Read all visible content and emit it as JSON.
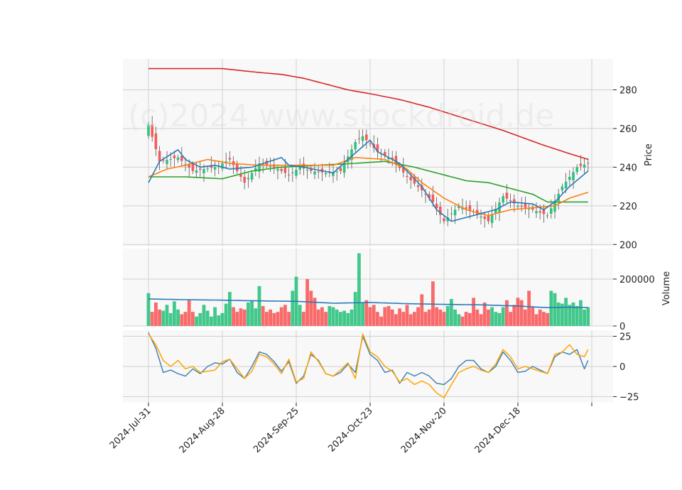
{
  "watermark": "(c)2024 www.stockdroid.de",
  "colors": {
    "up": "#2ec27e",
    "down": "#f85a5a",
    "ma_fast": "#2a7ab8",
    "ma_mid": "#ff7f0e",
    "ma_slow": "#2ca02c",
    "ma_long": "#d62728",
    "osc_a": "#4682b4",
    "osc_b": "#ffa500",
    "panel_bg": "#f8f8f8",
    "grid": "#d0d0d0"
  },
  "chart_data": {
    "type": "candlestick",
    "x_tick_labels": [
      "2024-Jul-31",
      "2024-Aug-28",
      "2024-Sep-25",
      "2024-Oct-23",
      "2024-Nov-20",
      "2024-Dec-18"
    ],
    "x_tick_index": [
      0,
      20,
      40,
      60,
      80,
      100
    ],
    "n_bars": 120,
    "price_panel": {
      "ylabel": "Price",
      "yticks": [
        200,
        220,
        240,
        260,
        280
      ],
      "ylim": [
        199,
        296
      ],
      "close_anchors": [
        [
          0,
          262
        ],
        [
          3,
          243
        ],
        [
          8,
          245
        ],
        [
          12,
          238
        ],
        [
          18,
          240
        ],
        [
          22,
          244
        ],
        [
          26,
          232
        ],
        [
          30,
          242
        ],
        [
          34,
          240
        ],
        [
          38,
          236
        ],
        [
          41,
          240
        ],
        [
          44,
          238
        ],
        [
          48,
          237
        ],
        [
          52,
          238
        ],
        [
          56,
          253
        ],
        [
          58,
          256
        ],
        [
          62,
          248
        ],
        [
          66,
          244
        ],
        [
          70,
          235
        ],
        [
          74,
          228
        ],
        [
          77,
          222
        ],
        [
          80,
          212
        ],
        [
          84,
          220
        ],
        [
          88,
          217
        ],
        [
          92,
          212
        ],
        [
          96,
          225
        ],
        [
          100,
          220
        ],
        [
          104,
          218
        ],
        [
          108,
          215
        ],
        [
          112,
          230
        ],
        [
          116,
          240
        ],
        [
          119,
          242
        ]
      ],
      "ma_fast_anchors": [
        [
          0,
          232
        ],
        [
          3,
          243
        ],
        [
          8,
          249
        ],
        [
          10,
          244
        ],
        [
          14,
          240
        ],
        [
          18,
          241
        ],
        [
          22,
          239
        ],
        [
          28,
          240
        ],
        [
          36,
          245
        ],
        [
          38,
          241
        ],
        [
          42,
          240
        ],
        [
          50,
          237
        ],
        [
          54,
          244
        ],
        [
          60,
          254
        ],
        [
          62,
          248
        ],
        [
          68,
          242
        ],
        [
          74,
          230
        ],
        [
          78,
          218
        ],
        [
          82,
          212
        ],
        [
          86,
          214
        ],
        [
          90,
          216
        ],
        [
          94,
          218
        ],
        [
          98,
          222
        ],
        [
          104,
          221
        ],
        [
          107,
          218
        ],
        [
          110,
          222
        ],
        [
          114,
          230
        ],
        [
          119,
          238
        ]
      ],
      "ma_mid_anchors": [
        [
          0,
          235
        ],
        [
          5,
          239
        ],
        [
          10,
          241
        ],
        [
          16,
          244
        ],
        [
          22,
          242
        ],
        [
          30,
          241
        ],
        [
          40,
          241
        ],
        [
          50,
          241
        ],
        [
          56,
          245
        ],
        [
          64,
          244
        ],
        [
          70,
          239
        ],
        [
          74,
          232
        ],
        [
          80,
          224
        ],
        [
          86,
          218
        ],
        [
          92,
          215
        ],
        [
          98,
          218
        ],
        [
          104,
          219
        ],
        [
          110,
          220
        ],
        [
          114,
          224
        ],
        [
          119,
          227
        ]
      ],
      "ma_slow_anchors": [
        [
          0,
          235
        ],
        [
          10,
          235
        ],
        [
          20,
          234
        ],
        [
          28,
          238
        ],
        [
          36,
          240
        ],
        [
          46,
          241
        ],
        [
          56,
          242
        ],
        [
          64,
          243
        ],
        [
          72,
          240
        ],
        [
          80,
          236
        ],
        [
          86,
          233
        ],
        [
          92,
          232
        ],
        [
          98,
          229
        ],
        [
          104,
          226
        ],
        [
          108,
          222
        ],
        [
          112,
          222
        ],
        [
          119,
          222
        ]
      ],
      "ma_long_anchors": [
        [
          0,
          291
        ],
        [
          10,
          291
        ],
        [
          20,
          291
        ],
        [
          30,
          289
        ],
        [
          36,
          288
        ],
        [
          42,
          286
        ],
        [
          50,
          282
        ],
        [
          54,
          280
        ],
        [
          60,
          278
        ],
        [
          68,
          275
        ],
        [
          76,
          271
        ],
        [
          86,
          265
        ],
        [
          96,
          259
        ],
        [
          106,
          252
        ],
        [
          114,
          247
        ],
        [
          119,
          244
        ]
      ]
    },
    "volume_panel": {
      "ylabel": "Volume",
      "yticks": [
        0,
        200000
      ],
      "ytick_labels": [
        "0",
        "200000"
      ],
      "ylim": [
        0,
        330000
      ],
      "levels": [
        140000,
        60000,
        100000,
        70000,
        65000,
        90000,
        55000,
        105000,
        70000,
        50000,
        60000,
        110000,
        60000,
        40000,
        55000,
        90000,
        65000,
        40000,
        80000,
        45000,
        55000,
        95000,
        145000,
        80000,
        60000,
        75000,
        70000,
        100000,
        110000,
        75000,
        170000,
        85000,
        60000,
        70000,
        55000,
        60000,
        80000,
        90000,
        60000,
        150000,
        210000,
        90000,
        60000,
        200000,
        150000,
        120000,
        70000,
        80000,
        60000,
        85000,
        80000,
        70000,
        60000,
        65000,
        55000,
        70000,
        145000,
        310000,
        100000,
        110000,
        80000,
        90000,
        60000,
        40000,
        80000,
        85000,
        70000,
        50000,
        75000,
        60000,
        90000,
        50000,
        60000,
        80000,
        135000,
        60000,
        70000,
        190000,
        80000,
        70000,
        60000,
        85000,
        115000,
        70000,
        50000,
        40000,
        60000,
        55000,
        120000,
        70000,
        50000,
        100000,
        70000,
        80000,
        60000,
        55000,
        80000,
        110000,
        60000,
        90000,
        120000,
        110000,
        70000,
        150000,
        80000,
        50000,
        70000,
        60000,
        55000,
        150000,
        140000,
        100000,
        95000,
        120000,
        90000,
        100000,
        85000,
        110000,
        70000,
        80000
      ],
      "ma_anchors": [
        [
          0,
          115000
        ],
        [
          10,
          112000
        ],
        [
          20,
          110000
        ],
        [
          30,
          107000
        ],
        [
          40,
          105000
        ],
        [
          50,
          97000
        ],
        [
          60,
          100000
        ],
        [
          70,
          95000
        ],
        [
          80,
          92000
        ],
        [
          90,
          90000
        ],
        [
          100,
          85000
        ],
        [
          108,
          78000
        ],
        [
          114,
          80000
        ],
        [
          119,
          78000
        ]
      ]
    },
    "osc_panel": {
      "yticks": [
        -25,
        0,
        25
      ],
      "ytick_labels": [
        "−25",
        "0",
        "25"
      ],
      "ylim": [
        -30,
        30
      ],
      "line_a_anchors": [
        [
          0,
          28
        ],
        [
          2,
          15
        ],
        [
          4,
          -5
        ],
        [
          6,
          -3
        ],
        [
          8,
          -6
        ],
        [
          10,
          -8
        ],
        [
          12,
          -2
        ],
        [
          14,
          -6
        ],
        [
          16,
          0
        ],
        [
          18,
          3
        ],
        [
          20,
          2
        ],
        [
          22,
          6
        ],
        [
          24,
          -5
        ],
        [
          26,
          -10
        ],
        [
          28,
          0
        ],
        [
          30,
          12
        ],
        [
          32,
          10
        ],
        [
          34,
          4
        ],
        [
          36,
          -4
        ],
        [
          38,
          4
        ],
        [
          40,
          -14
        ],
        [
          42,
          -8
        ],
        [
          44,
          10
        ],
        [
          46,
          5
        ],
        [
          48,
          -6
        ],
        [
          50,
          -8
        ],
        [
          52,
          -5
        ],
        [
          54,
          2
        ],
        [
          56,
          -5
        ],
        [
          58,
          25
        ],
        [
          60,
          10
        ],
        [
          62,
          5
        ],
        [
          64,
          -5
        ],
        [
          66,
          -3
        ],
        [
          68,
          -14
        ],
        [
          70,
          -5
        ],
        [
          72,
          -8
        ],
        [
          74,
          -5
        ],
        [
          76,
          -8
        ],
        [
          78,
          -14
        ],
        [
          80,
          -15
        ],
        [
          82,
          -10
        ],
        [
          84,
          0
        ],
        [
          86,
          5
        ],
        [
          88,
          5
        ],
        [
          90,
          -2
        ],
        [
          92,
          -5
        ],
        [
          94,
          0
        ],
        [
          96,
          12
        ],
        [
          98,
          5
        ],
        [
          100,
          -5
        ],
        [
          102,
          -4
        ],
        [
          104,
          0
        ],
        [
          106,
          -3
        ],
        [
          108,
          -6
        ],
        [
          110,
          8
        ],
        [
          112,
          12
        ],
        [
          114,
          10
        ],
        [
          116,
          14
        ],
        [
          118,
          -2
        ],
        [
          119,
          5
        ]
      ],
      "line_b_anchors": [
        [
          0,
          27
        ],
        [
          2,
          18
        ],
        [
          4,
          5
        ],
        [
          6,
          0
        ],
        [
          8,
          5
        ],
        [
          10,
          -2
        ],
        [
          12,
          0
        ],
        [
          14,
          -5
        ],
        [
          16,
          -4
        ],
        [
          18,
          -3
        ],
        [
          20,
          4
        ],
        [
          22,
          6
        ],
        [
          24,
          -2
        ],
        [
          26,
          -10
        ],
        [
          28,
          -4
        ],
        [
          30,
          10
        ],
        [
          32,
          8
        ],
        [
          34,
          2
        ],
        [
          36,
          -6
        ],
        [
          38,
          6
        ],
        [
          40,
          -13
        ],
        [
          42,
          -10
        ],
        [
          44,
          12
        ],
        [
          46,
          4
        ],
        [
          48,
          -6
        ],
        [
          50,
          -8
        ],
        [
          52,
          -3
        ],
        [
          54,
          3
        ],
        [
          56,
          -10
        ],
        [
          58,
          27
        ],
        [
          60,
          12
        ],
        [
          62,
          8
        ],
        [
          64,
          0
        ],
        [
          66,
          -4
        ],
        [
          68,
          -13
        ],
        [
          70,
          -10
        ],
        [
          72,
          -15
        ],
        [
          74,
          -12
        ],
        [
          76,
          -15
        ],
        [
          78,
          -22
        ],
        [
          80,
          -26
        ],
        [
          82,
          -15
        ],
        [
          84,
          -5
        ],
        [
          86,
          -2
        ],
        [
          88,
          0
        ],
        [
          90,
          -3
        ],
        [
          92,
          -5
        ],
        [
          94,
          2
        ],
        [
          96,
          14
        ],
        [
          98,
          8
        ],
        [
          100,
          -2
        ],
        [
          102,
          0
        ],
        [
          104,
          -2
        ],
        [
          106,
          -4
        ],
        [
          108,
          -6
        ],
        [
          110,
          10
        ],
        [
          112,
          12
        ],
        [
          114,
          18
        ],
        [
          116,
          10
        ],
        [
          118,
          8
        ],
        [
          119,
          14
        ]
      ]
    }
  }
}
